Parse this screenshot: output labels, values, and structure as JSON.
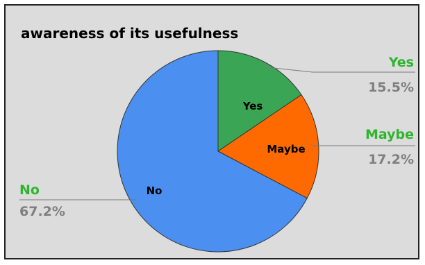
{
  "chart_data": {
    "type": "pie",
    "title": "awareness of its usefulness",
    "categories": [
      "Yes",
      "Maybe",
      "No"
    ],
    "values": [
      15.5,
      17.2,
      67.2
    ],
    "value_labels": [
      "15.5%",
      "17.2%",
      "67.2%"
    ],
    "colors": [
      "#3aa655",
      "#ff6a00",
      "#4b8ff0"
    ],
    "label_color": "#2db52d",
    "value_label_color": "#7f7f7f",
    "legend": "none"
  }
}
